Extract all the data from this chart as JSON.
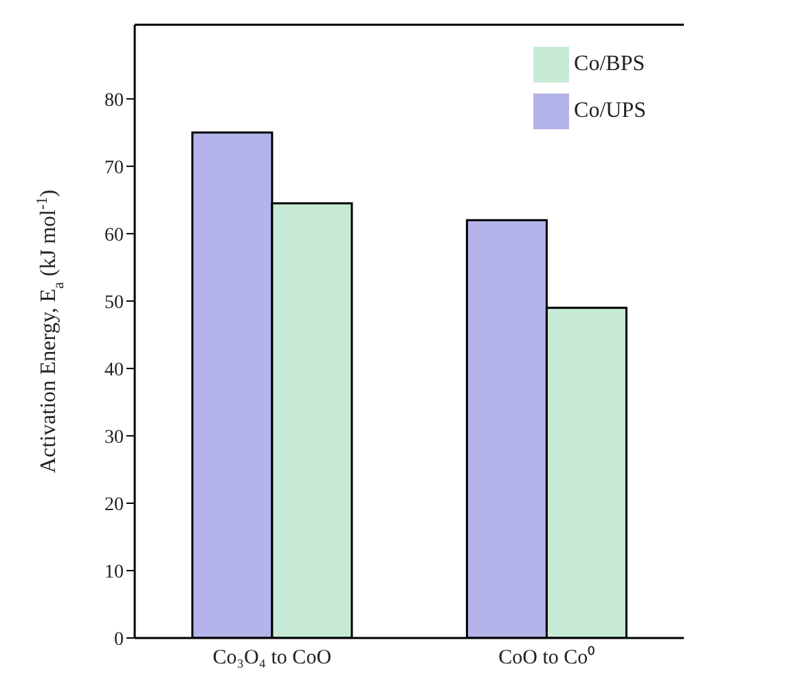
{
  "chart_data": {
    "type": "bar",
    "ylabel": "Activation Energy, E$_{a}$ (kJ mol$^{-1}$)",
    "categories": [
      "Co₃O₄ to CoO",
      "CoO to Co⁰"
    ],
    "series": [
      {
        "name": "Co/UPS",
        "color": "#b4b4ea",
        "values": [
          75,
          62
        ]
      },
      {
        "name": "Co/BPS",
        "color": "#c6ead6",
        "values": [
          64.5,
          49
        ]
      }
    ],
    "ylim": [
      0,
      91
    ],
    "yticks": [
      0,
      10,
      20,
      30,
      40,
      50,
      60,
      70,
      80
    ],
    "grid": false,
    "legend": "top right"
  }
}
